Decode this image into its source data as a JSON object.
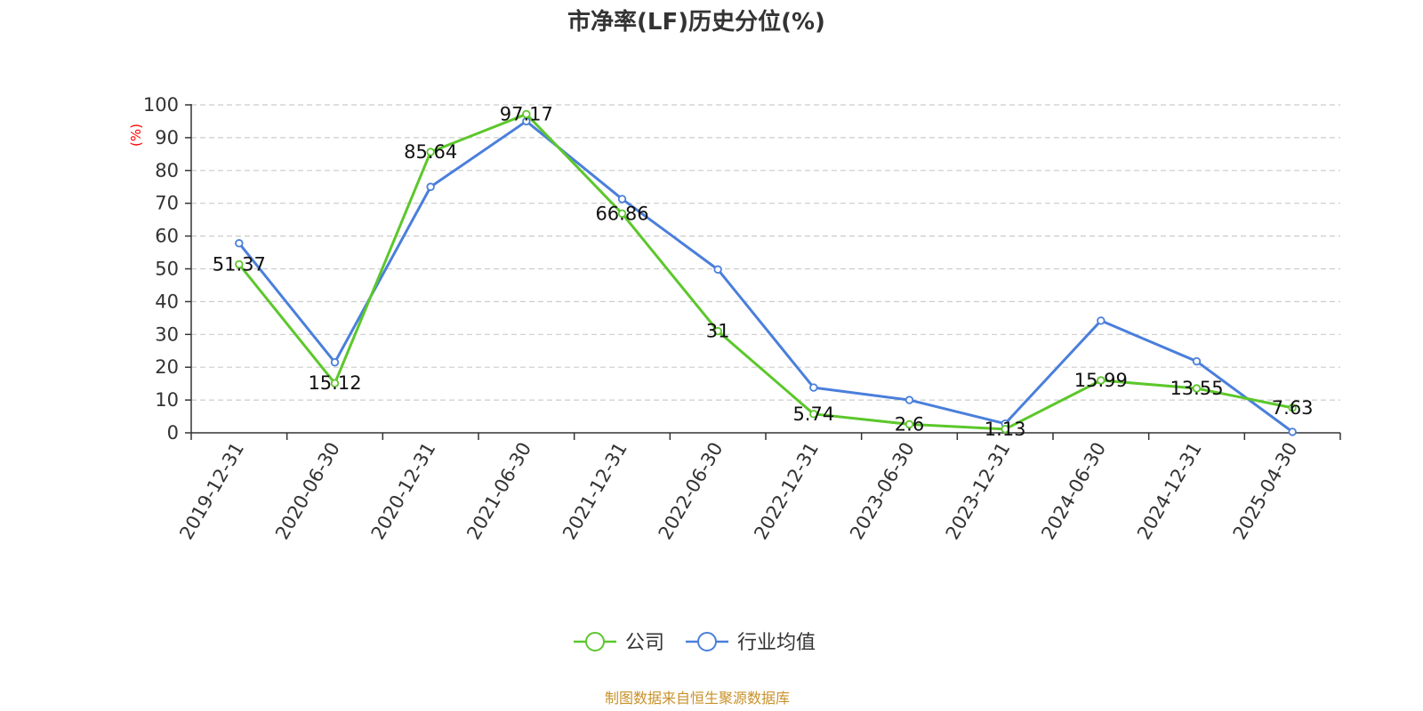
{
  "chart_data": {
    "type": "line",
    "title": "市净率(LF)历史分位(%)",
    "ylabel": "(%)",
    "ylim": [
      0,
      100
    ],
    "yticks": [
      0,
      10,
      20,
      30,
      40,
      50,
      60,
      70,
      80,
      90,
      100
    ],
    "grid": true,
    "categories": [
      "2019-12-31",
      "2020-06-30",
      "2020-12-31",
      "2021-06-30",
      "2021-12-31",
      "2022-06-30",
      "2022-12-31",
      "2023-06-30",
      "2023-12-31",
      "2024-06-30",
      "2024-12-31",
      "2025-04-30"
    ],
    "series": [
      {
        "name": "公司",
        "color": "#5cc72b",
        "values": [
          51.37,
          15.12,
          85.64,
          97.17,
          66.86,
          31,
          5.74,
          2.6,
          1.13,
          15.99,
          13.55,
          7.63
        ],
        "labels": [
          "51.37",
          "15.12",
          "85.64",
          "97.17",
          "66.86",
          "31",
          "5.74",
          "2.6",
          "1.13",
          "15.99",
          "13.55",
          "7.63"
        ]
      },
      {
        "name": "行业均值",
        "color": "#4a7fdb",
        "values": [
          57.8,
          21.5,
          75,
          95,
          71.3,
          49.8,
          13.8,
          10,
          2.8,
          34.2,
          21.8,
          0.3
        ]
      }
    ],
    "legend_position": "bottom-center",
    "source": "制图数据来自恒生聚源数据库",
    "source_color": "#c8912a"
  }
}
